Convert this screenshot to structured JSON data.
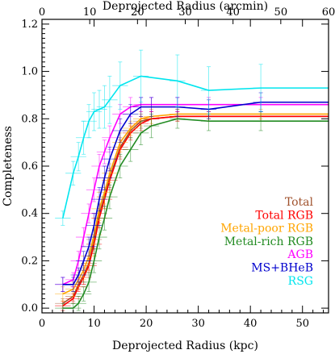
{
  "chart_data": {
    "type": "line",
    "title": "",
    "xlabel": "Deprojected Radius (kpc)",
    "ylabel": "Completeness",
    "x2label": "Deprojected Radius (arcmin)",
    "xlim": [
      0,
      55
    ],
    "ylim": [
      -0.02,
      1.22
    ],
    "x2lim": [
      0,
      60
    ],
    "xticks": [
      0,
      10,
      20,
      30,
      40,
      50
    ],
    "x2ticks": [
      0,
      10,
      20,
      30,
      40,
      50,
      60
    ],
    "yticks": [
      0.0,
      0.2,
      0.4,
      0.6,
      0.8,
      1.0,
      1.2
    ],
    "ytick_labels": [
      "0.0",
      "0.2",
      "0.4",
      "0.6",
      "0.8",
      "1.0",
      "1.2"
    ],
    "legend_position": "lower-right",
    "series": [
      {
        "name": "Total",
        "color": "#a0522d",
        "x": [
          4,
          6,
          7,
          8,
          9,
          10,
          11,
          12,
          13,
          15,
          17,
          19,
          21,
          26,
          32,
          42,
          55
        ],
        "y": [
          0.02,
          0.05,
          0.1,
          0.14,
          0.19,
          0.29,
          0.4,
          0.47,
          0.55,
          0.68,
          0.75,
          0.79,
          0.8,
          0.81,
          0.81,
          0.81,
          0.81
        ],
        "yerr": [
          0.02,
          0.02,
          0.02,
          0.03,
          0.03,
          0.04,
          0.04,
          0.04,
          0.04,
          0.04,
          0.03,
          0.03,
          0.03,
          0.02,
          0.02,
          0.02,
          0
        ]
      },
      {
        "name": "Total RGB",
        "color": "#ff0000",
        "x": [
          4,
          6,
          7,
          8,
          9,
          10,
          11,
          12,
          13,
          15,
          17,
          19,
          21,
          26,
          32,
          42,
          55
        ],
        "y": [
          0.01,
          0.04,
          0.09,
          0.13,
          0.18,
          0.27,
          0.38,
          0.46,
          0.54,
          0.67,
          0.74,
          0.78,
          0.8,
          0.81,
          0.81,
          0.81,
          0.81
        ],
        "yerr": [
          0.02,
          0.02,
          0.02,
          0.03,
          0.03,
          0.04,
          0.04,
          0.04,
          0.04,
          0.04,
          0.03,
          0.03,
          0.03,
          0.02,
          0.02,
          0.02,
          0
        ]
      },
      {
        "name": "Metal-poor RGB",
        "color": "#ffa500",
        "x": [
          4,
          6,
          7,
          8,
          9,
          10,
          11,
          12,
          13,
          15,
          17,
          19,
          21,
          26,
          32,
          42,
          55
        ],
        "y": [
          0.06,
          0.08,
          0.12,
          0.16,
          0.22,
          0.31,
          0.42,
          0.49,
          0.57,
          0.7,
          0.76,
          0.8,
          0.81,
          0.82,
          0.82,
          0.82,
          0.82
        ],
        "yerr": [
          0.03,
          0.03,
          0.03,
          0.03,
          0.04,
          0.04,
          0.05,
          0.05,
          0.04,
          0.04,
          0.03,
          0.03,
          0.03,
          0.02,
          0.02,
          0.02,
          0
        ]
      },
      {
        "name": "Metal-rich RGB",
        "color": "#228b22",
        "x": [
          4,
          6,
          7,
          8,
          9,
          10,
          11,
          12,
          13,
          15,
          17,
          19,
          21,
          26,
          32,
          42,
          55
        ],
        "y": [
          0.0,
          0.0,
          0.02,
          0.06,
          0.11,
          0.2,
          0.3,
          0.38,
          0.47,
          0.6,
          0.67,
          0.74,
          0.77,
          0.8,
          0.79,
          0.79,
          0.79
        ],
        "yerr": [
          0.02,
          0.02,
          0.03,
          0.03,
          0.04,
          0.05,
          0.05,
          0.05,
          0.05,
          0.05,
          0.05,
          0.05,
          0.05,
          0.04,
          0.04,
          0.04,
          0
        ]
      },
      {
        "name": "AGB",
        "color": "#ff00ff",
        "x": [
          4,
          6,
          7,
          8,
          9,
          10,
          11,
          12,
          13,
          15,
          17,
          19,
          21,
          26,
          32,
          42,
          55
        ],
        "y": [
          0.1,
          0.12,
          0.2,
          0.3,
          0.4,
          0.5,
          0.6,
          0.66,
          0.72,
          0.82,
          0.85,
          0.86,
          0.86,
          0.86,
          0.86,
          0.86,
          0.86
        ],
        "yerr": [
          0.03,
          0.03,
          0.04,
          0.04,
          0.04,
          0.05,
          0.05,
          0.05,
          0.05,
          0.04,
          0.04,
          0.03,
          0.03,
          0.03,
          0.03,
          0.03,
          0
        ]
      },
      {
        "name": "MS+BHeB",
        "color": "#0000cd",
        "x": [
          4,
          6,
          7,
          8,
          9,
          10,
          11,
          12,
          13,
          15,
          17,
          19,
          21,
          26,
          32,
          42,
          55
        ],
        "y": [
          0.1,
          0.1,
          0.14,
          0.2,
          0.26,
          0.35,
          0.46,
          0.55,
          0.63,
          0.75,
          0.82,
          0.85,
          0.85,
          0.85,
          0.84,
          0.87,
          0.87
        ],
        "yerr": [
          0.03,
          0.03,
          0.03,
          0.04,
          0.04,
          0.05,
          0.05,
          0.05,
          0.05,
          0.05,
          0.04,
          0.04,
          0.04,
          0.04,
          0.04,
          0.04,
          0
        ]
      },
      {
        "name": "RSG",
        "color": "#00e5ee",
        "x": [
          4,
          6,
          7,
          8,
          9,
          10,
          11,
          12,
          13,
          15,
          19,
          26,
          32,
          42,
          55
        ],
        "y": [
          0.38,
          0.57,
          0.64,
          0.72,
          0.79,
          0.83,
          0.84,
          0.85,
          0.88,
          0.94,
          0.98,
          0.96,
          0.92,
          0.93,
          0.93
        ],
        "yerr": [
          0.03,
          0.05,
          0.06,
          0.07,
          0.07,
          0.08,
          0.08,
          0.09,
          0.1,
          0.1,
          0.11,
          0.11,
          0.1,
          0.1,
          0
        ]
      }
    ]
  }
}
